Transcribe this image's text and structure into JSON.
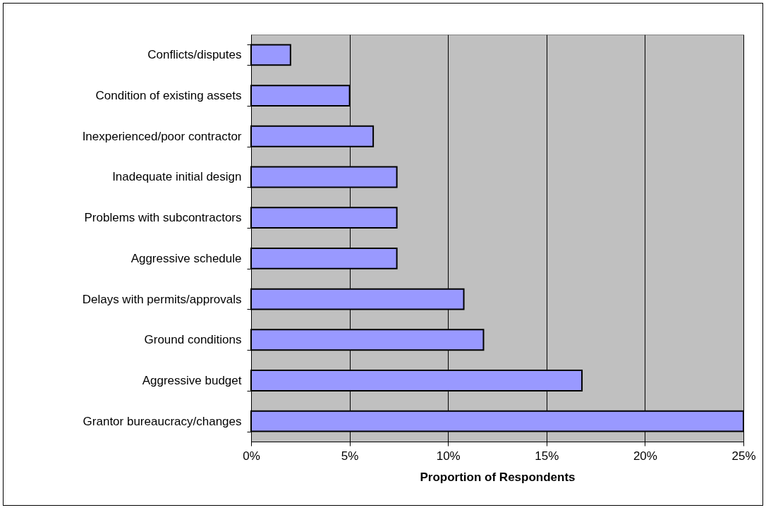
{
  "chart_data": {
    "type": "bar",
    "orientation": "horizontal",
    "xlabel": "Proportion of Respondents",
    "categories": [
      "Conflicts/disputes",
      "Condition of existing assets",
      "Inexperienced/poor contractor",
      "Inadequate initial design",
      "Problems with subcontractors",
      "Aggressive schedule",
      "Delays with permits/approvals",
      "Ground conditions",
      "Aggressive budget",
      "Grantor bureaucracy/changes"
    ],
    "values": [
      2.0,
      5.0,
      6.2,
      7.4,
      7.4,
      7.4,
      10.8,
      11.8,
      16.8,
      25.0
    ],
    "color": "#9999ff",
    "xlim": [
      0,
      25
    ],
    "xticks": [
      {
        "value": 0,
        "label": "0%"
      },
      {
        "value": 5,
        "label": "5%"
      },
      {
        "value": 10,
        "label": "10%"
      },
      {
        "value": 15,
        "label": "15%"
      },
      {
        "value": 20,
        "label": "20%"
      },
      {
        "value": 25,
        "label": "25%"
      }
    ],
    "grid": "x"
  }
}
